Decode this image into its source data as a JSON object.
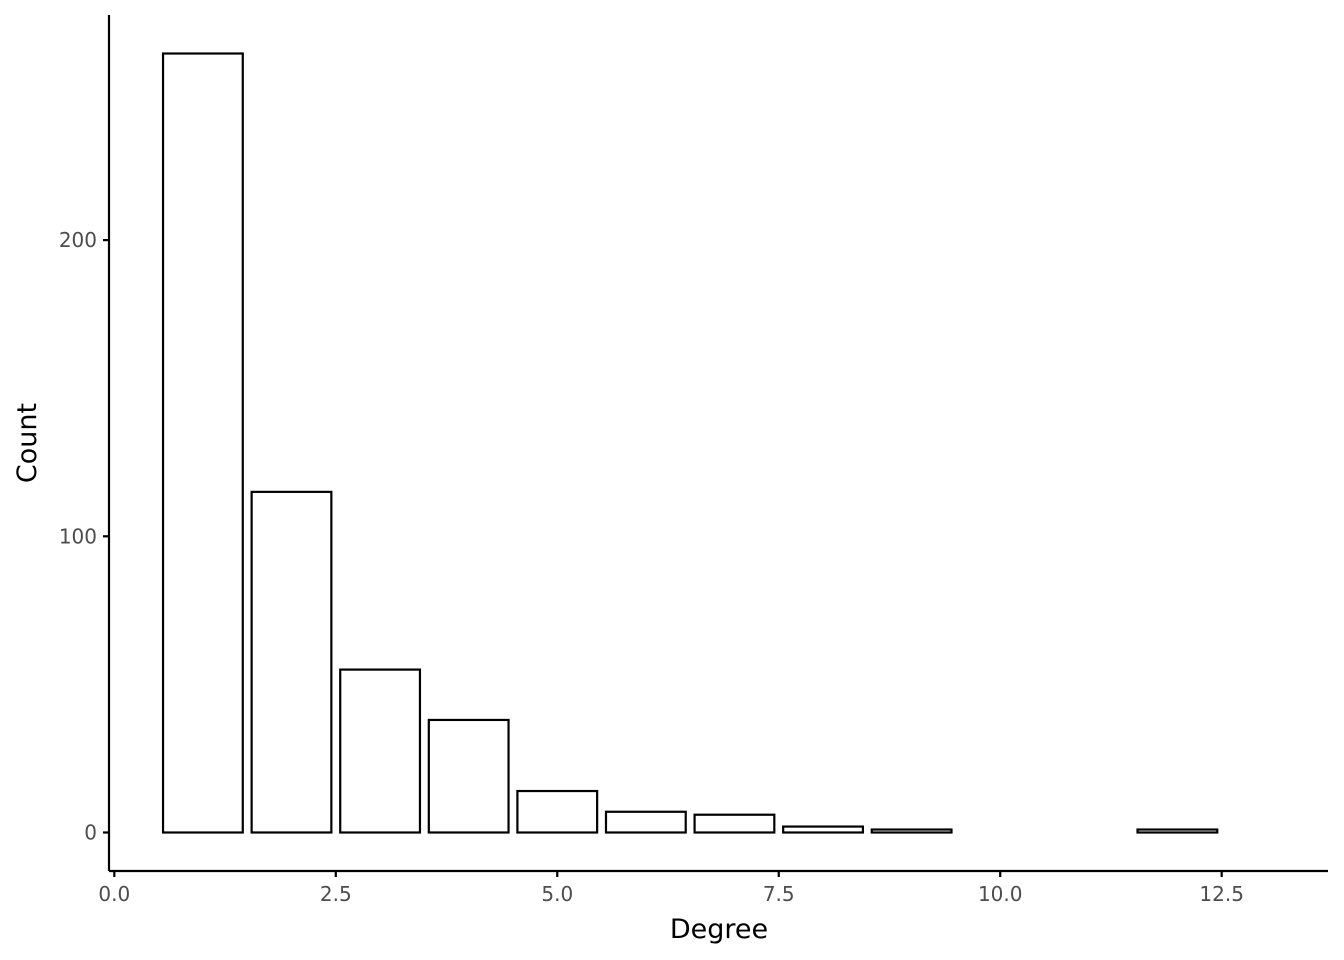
{
  "chart_data": {
    "type": "bar",
    "title": "",
    "xlabel": "Degree",
    "ylabel": "Count",
    "x": [
      1,
      2,
      3,
      4,
      5,
      6,
      7,
      8,
      9,
      12
    ],
    "values": [
      263,
      115,
      55,
      38,
      14,
      7,
      6,
      2,
      1,
      1
    ],
    "bar_width": 0.9,
    "xlim": [
      -0.06,
      13.7
    ],
    "ylim": [
      -13,
      276
    ],
    "xticks": [
      0,
      2.5,
      5,
      7.5,
      10,
      12.5
    ],
    "xtick_labels": [
      "0.0",
      "2.5",
      "5.0",
      "7.5",
      "10.0",
      "12.5"
    ],
    "yticks": [
      0,
      100,
      200
    ],
    "ytick_labels": [
      "0",
      "100",
      "200"
    ],
    "grid": false,
    "legend": "none",
    "bar_fill": "#ffffff",
    "bar_stroke": "#000000"
  }
}
